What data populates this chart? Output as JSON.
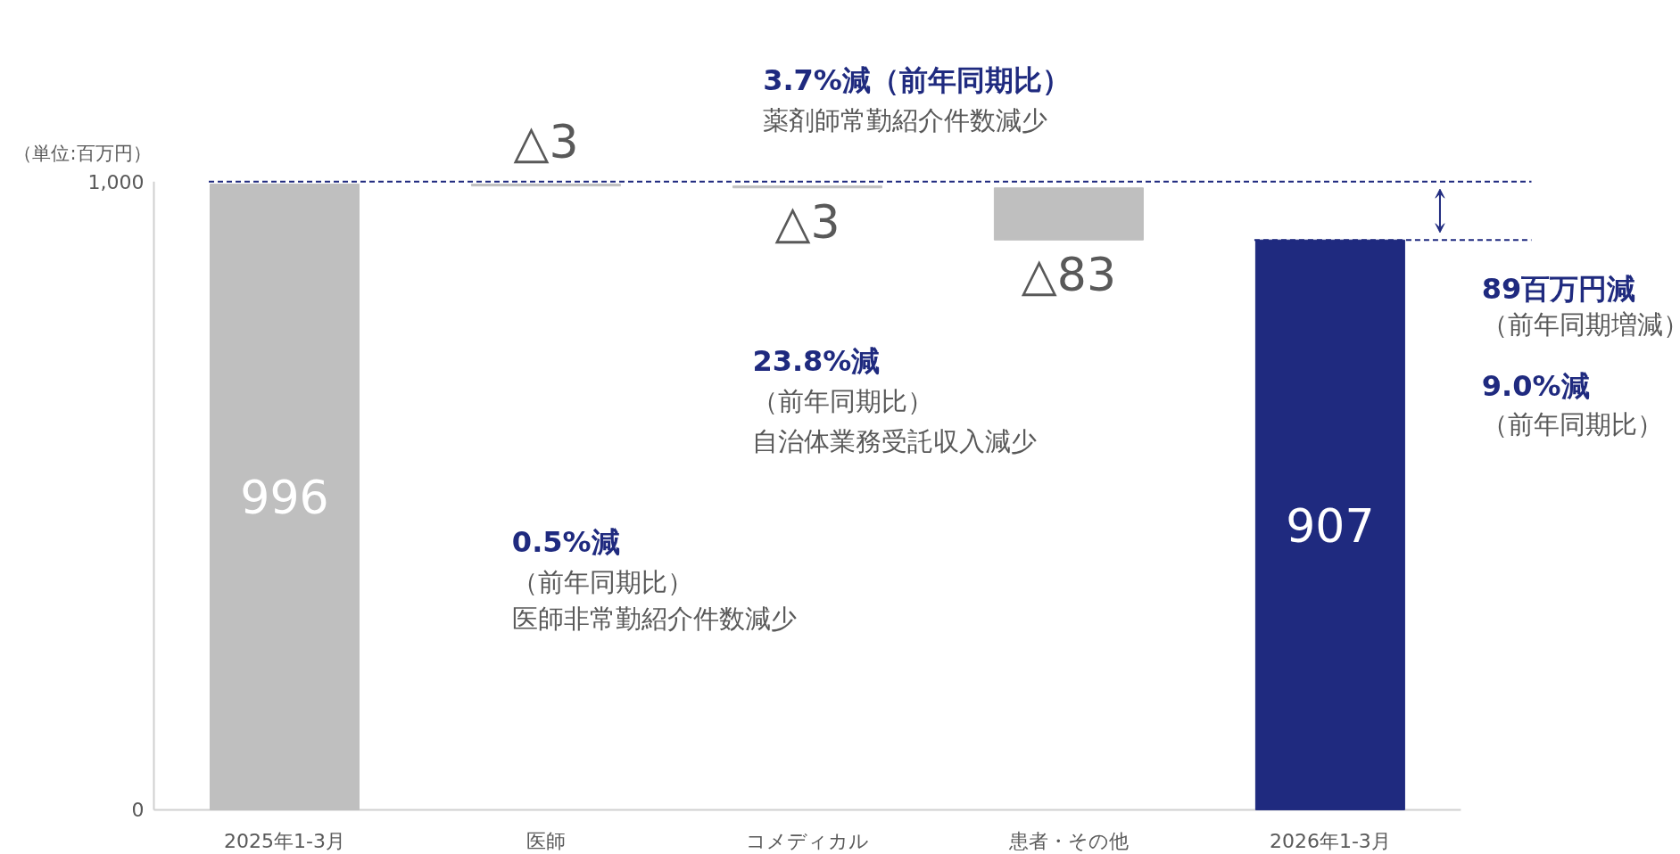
{
  "chart_data": {
    "type": "bar",
    "ylabel": "（単位:百万円）",
    "categories": [
      "2025年1-3月",
      "医師",
      "コメディカル",
      "患者・その他",
      "2026年1-3月"
    ],
    "values": [
      996,
      -3,
      -3,
      -83,
      907
    ],
    "base": [
      0,
      996,
      993,
      990,
      0
    ],
    "colors": [
      "#bfbfbf",
      "#bfbfbf",
      "#bfbfbf",
      "#bfbfbf",
      "#1f2a7f"
    ],
    "value_labels": [
      "996",
      "△3",
      "△3",
      "△83",
      "907"
    ],
    "ylim": [
      0,
      1000
    ],
    "yticks": [
      0,
      {
        "value": 1000,
        "label": "1,000"
      }
    ],
    "grid": false,
    "ref_lines": [
      {
        "axis": "y",
        "value": 1000,
        "color": "#1f2a7f",
        "line_style": "dashed"
      },
      {
        "axis": "y",
        "value": 907,
        "color": "#1f2a7f",
        "line_style": "dashed"
      }
    ],
    "annotations": [
      "3.7%減（前年同期比）",
      "薬剤師常勤紹介件数減少",
      "23.8%減",
      "（前年同期比）",
      "自治体業務受託収入減少",
      "0.5%減",
      "（前年同期比）",
      "医師非常勤紹介件数減少",
      "89百万円減",
      "（前年同期増減）",
      "9.0%減",
      "（前年同期比）"
    ]
  }
}
